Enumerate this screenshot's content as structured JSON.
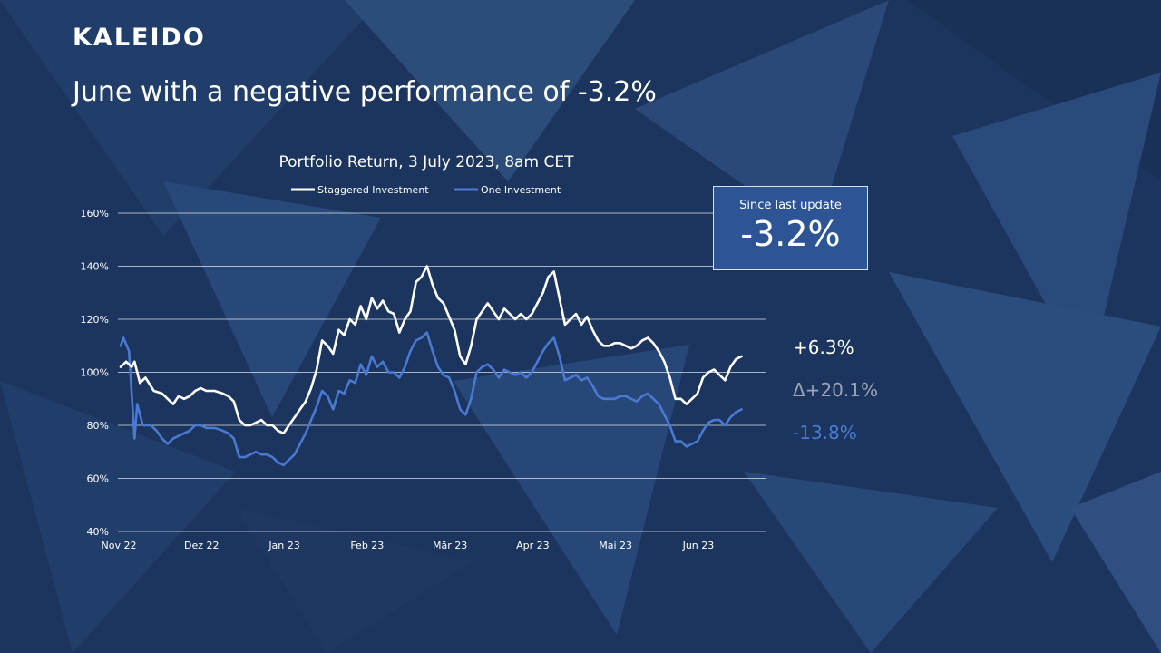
{
  "brand": {
    "logo_text": "KALEIDO"
  },
  "headline": "June with a negative performance of -3.2%",
  "badge": {
    "label": "Since last update",
    "value": "-3.2%"
  },
  "end_labels": {
    "staggered": "+6.3%",
    "delta": "Δ+20.1%",
    "one": "-13.8%"
  },
  "colors": {
    "background": "#1c355e",
    "staggered": "#ffffff",
    "one": "#4a79d1",
    "badge_bg": "#2d5596",
    "delta": "#9aa5b5"
  },
  "chart_data": {
    "type": "line",
    "title": "Portfolio Return, 3 July 2023, 8am CET",
    "xlabel": "",
    "ylabel": "",
    "x_range": [
      0,
      235
    ],
    "ylim": [
      40,
      160
    ],
    "y_ticks": [
      40,
      60,
      80,
      100,
      120,
      140,
      160
    ],
    "y_tick_labels": [
      "40%",
      "60%",
      "80%",
      "100%",
      "120%",
      "140%",
      "160%"
    ],
    "x_ticks": [
      0,
      30,
      60,
      90,
      120,
      150,
      180,
      210
    ],
    "x_tick_labels": [
      "Nov 22",
      "Dez 22",
      "Jan 23",
      "Feb 23",
      "Mär 23",
      "Apr 23",
      "Mai 23",
      "Jun 23"
    ],
    "legend": {
      "position": "top-center"
    },
    "grid": true,
    "series": [
      {
        "name": "Staggered Investment",
        "points": [
          [
            1,
            102
          ],
          [
            3,
            104
          ],
          [
            5,
            102
          ],
          [
            6,
            104
          ],
          [
            8,
            96
          ],
          [
            10,
            98
          ],
          [
            13,
            93
          ],
          [
            16,
            92
          ],
          [
            18,
            90
          ],
          [
            20,
            88
          ],
          [
            22,
            91
          ],
          [
            24,
            90
          ],
          [
            26,
            91
          ],
          [
            28,
            93
          ],
          [
            30,
            94
          ],
          [
            32,
            93
          ],
          [
            35,
            93
          ],
          [
            38,
            92
          ],
          [
            40,
            91
          ],
          [
            42,
            89
          ],
          [
            44,
            82
          ],
          [
            46,
            80
          ],
          [
            48,
            80
          ],
          [
            50,
            81
          ],
          [
            52,
            82
          ],
          [
            54,
            80
          ],
          [
            56,
            80
          ],
          [
            58,
            78
          ],
          [
            60,
            77
          ],
          [
            62,
            80
          ],
          [
            64,
            83
          ],
          [
            66,
            86
          ],
          [
            68,
            89
          ],
          [
            70,
            94
          ],
          [
            72,
            101
          ],
          [
            74,
            112
          ],
          [
            76,
            110
          ],
          [
            78,
            107
          ],
          [
            80,
            116
          ],
          [
            82,
            114
          ],
          [
            84,
            120
          ],
          [
            86,
            118
          ],
          [
            88,
            125
          ],
          [
            90,
            120
          ],
          [
            92,
            128
          ],
          [
            94,
            124
          ],
          [
            96,
            127
          ],
          [
            98,
            123
          ],
          [
            100,
            122
          ],
          [
            102,
            115
          ],
          [
            104,
            120
          ],
          [
            106,
            123
          ],
          [
            108,
            134
          ],
          [
            110,
            136
          ],
          [
            112,
            140
          ],
          [
            114,
            133
          ],
          [
            116,
            128
          ],
          [
            118,
            126
          ],
          [
            120,
            121
          ],
          [
            122,
            116
          ],
          [
            124,
            106
          ],
          [
            126,
            103
          ],
          [
            128,
            110
          ],
          [
            130,
            120
          ],
          [
            132,
            123
          ],
          [
            134,
            126
          ],
          [
            136,
            123
          ],
          [
            138,
            120
          ],
          [
            140,
            124
          ],
          [
            142,
            122
          ],
          [
            144,
            120
          ],
          [
            146,
            122
          ],
          [
            148,
            120
          ],
          [
            150,
            122
          ],
          [
            152,
            126
          ],
          [
            154,
            130
          ],
          [
            156,
            136
          ],
          [
            158,
            138
          ],
          [
            160,
            128
          ],
          [
            162,
            118
          ],
          [
            164,
            120
          ],
          [
            166,
            122
          ],
          [
            168,
            118
          ],
          [
            170,
            121
          ],
          [
            172,
            116
          ],
          [
            174,
            112
          ],
          [
            176,
            110
          ],
          [
            178,
            110
          ],
          [
            180,
            111
          ],
          [
            182,
            111
          ],
          [
            184,
            110
          ],
          [
            186,
            109
          ],
          [
            188,
            110
          ],
          [
            190,
            112
          ],
          [
            192,
            113
          ],
          [
            194,
            111
          ],
          [
            196,
            108
          ],
          [
            198,
            104
          ],
          [
            200,
            98
          ],
          [
            202,
            90
          ],
          [
            204,
            90
          ],
          [
            206,
            88
          ],
          [
            208,
            90
          ],
          [
            210,
            92
          ],
          [
            212,
            98
          ],
          [
            214,
            100
          ],
          [
            216,
            101
          ],
          [
            218,
            99
          ],
          [
            220,
            97
          ],
          [
            222,
            102
          ],
          [
            224,
            105
          ],
          [
            226,
            106
          ]
        ]
      },
      {
        "name": "One Investment",
        "points": [
          [
            1,
            110
          ],
          [
            2,
            113
          ],
          [
            4,
            108
          ],
          [
            6,
            75
          ],
          [
            7,
            88
          ],
          [
            9,
            80
          ],
          [
            12,
            80
          ],
          [
            14,
            78
          ],
          [
            16,
            75
          ],
          [
            18,
            73
          ],
          [
            20,
            75
          ],
          [
            22,
            76
          ],
          [
            24,
            77
          ],
          [
            26,
            78
          ],
          [
            28,
            80
          ],
          [
            30,
            80
          ],
          [
            32,
            79
          ],
          [
            35,
            79
          ],
          [
            38,
            78
          ],
          [
            40,
            77
          ],
          [
            42,
            75
          ],
          [
            44,
            68
          ],
          [
            46,
            68
          ],
          [
            48,
            69
          ],
          [
            50,
            70
          ],
          [
            52,
            69
          ],
          [
            54,
            69
          ],
          [
            56,
            68
          ],
          [
            58,
            66
          ],
          [
            60,
            65
          ],
          [
            62,
            67
          ],
          [
            64,
            69
          ],
          [
            66,
            73
          ],
          [
            68,
            77
          ],
          [
            70,
            82
          ],
          [
            72,
            87
          ],
          [
            74,
            93
          ],
          [
            76,
            91
          ],
          [
            78,
            86
          ],
          [
            80,
            93
          ],
          [
            82,
            92
          ],
          [
            84,
            97
          ],
          [
            86,
            96
          ],
          [
            88,
            103
          ],
          [
            90,
            99
          ],
          [
            92,
            106
          ],
          [
            94,
            102
          ],
          [
            96,
            104
          ],
          [
            98,
            100
          ],
          [
            100,
            100
          ],
          [
            102,
            98
          ],
          [
            104,
            102
          ],
          [
            106,
            108
          ],
          [
            108,
            112
          ],
          [
            110,
            113
          ],
          [
            112,
            115
          ],
          [
            114,
            108
          ],
          [
            116,
            102
          ],
          [
            118,
            99
          ],
          [
            120,
            98
          ],
          [
            122,
            93
          ],
          [
            124,
            86
          ],
          [
            126,
            84
          ],
          [
            128,
            90
          ],
          [
            130,
            100
          ],
          [
            132,
            102
          ],
          [
            134,
            103
          ],
          [
            136,
            101
          ],
          [
            138,
            98
          ],
          [
            140,
            101
          ],
          [
            142,
            100
          ],
          [
            144,
            99
          ],
          [
            146,
            100
          ],
          [
            148,
            98
          ],
          [
            150,
            100
          ],
          [
            152,
            104
          ],
          [
            154,
            108
          ],
          [
            156,
            111
          ],
          [
            158,
            113
          ],
          [
            160,
            106
          ],
          [
            162,
            97
          ],
          [
            164,
            98
          ],
          [
            166,
            99
          ],
          [
            168,
            97
          ],
          [
            170,
            98
          ],
          [
            172,
            95
          ],
          [
            174,
            91
          ],
          [
            176,
            90
          ],
          [
            178,
            90
          ],
          [
            180,
            90
          ],
          [
            182,
            91
          ],
          [
            184,
            91
          ],
          [
            186,
            90
          ],
          [
            188,
            89
          ],
          [
            190,
            91
          ],
          [
            192,
            92
          ],
          [
            194,
            90
          ],
          [
            196,
            88
          ],
          [
            198,
            84
          ],
          [
            200,
            80
          ],
          [
            202,
            74
          ],
          [
            204,
            74
          ],
          [
            206,
            72
          ],
          [
            208,
            73
          ],
          [
            210,
            74
          ],
          [
            212,
            78
          ],
          [
            214,
            81
          ],
          [
            216,
            82
          ],
          [
            218,
            82
          ],
          [
            220,
            80
          ],
          [
            222,
            83
          ],
          [
            224,
            85
          ],
          [
            226,
            86
          ]
        ]
      }
    ]
  }
}
